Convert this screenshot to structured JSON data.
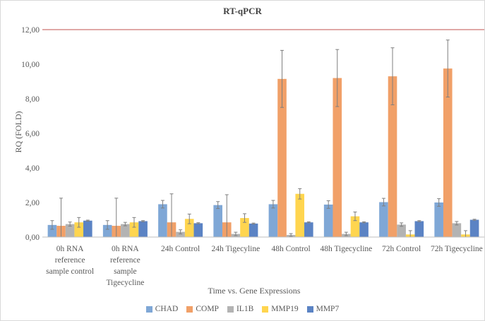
{
  "chart_data": {
    "type": "bar",
    "title": "RT-qPCR",
    "xlabel": "Time vs. Gene Expressions",
    "ylabel": "RQ (FOLD)",
    "ylim": [
      0,
      12
    ],
    "yticks": [
      "0,00",
      "2,00",
      "4,00",
      "6,00",
      "8,00",
      "10,00",
      "12,00"
    ],
    "grid": false,
    "legend_position": "bottom",
    "categories": [
      [
        "0h RNA",
        "reference",
        "sample control"
      ],
      [
        "0h RNA",
        "reference",
        "sample",
        "Tigecycline"
      ],
      [
        "24h Control"
      ],
      [
        "24h Tigecyline"
      ],
      [
        "48h Control"
      ],
      [
        "48h Tigecycline"
      ],
      [
        "72h Control"
      ],
      [
        "72h Tigecycline"
      ]
    ],
    "series": [
      {
        "name": "CHAD",
        "color": "#7fa7d6",
        "values": [
          0.7,
          0.7,
          1.9,
          1.85,
          1.9,
          1.88,
          2.02,
          2.0
        ],
        "errors": [
          0.25,
          0.25,
          0.22,
          0.2,
          0.22,
          0.22,
          0.22,
          0.22
        ]
      },
      {
        "name": "COMP",
        "color": "#f1a068",
        "values": [
          0.65,
          0.65,
          0.85,
          0.85,
          9.15,
          9.2,
          9.3,
          9.75
        ],
        "errors": [
          1.6,
          1.6,
          1.65,
          1.6,
          1.65,
          1.65,
          1.65,
          1.65
        ]
      },
      {
        "name": "IL1B",
        "color": "#b3b3b3",
        "values": [
          0.75,
          0.75,
          0.3,
          0.18,
          0.12,
          0.18,
          0.72,
          0.8
        ],
        "errors": [
          0.12,
          0.1,
          0.12,
          0.1,
          0.08,
          0.1,
          0.1,
          0.1
        ]
      },
      {
        "name": "MMP19",
        "color": "#ffd54f",
        "values": [
          0.85,
          0.85,
          1.05,
          1.1,
          2.5,
          1.2,
          0.15,
          0.15
        ],
        "errors": [
          0.28,
          0.28,
          0.28,
          0.25,
          0.3,
          0.25,
          0.22,
          0.22
        ]
      },
      {
        "name": "MMP7",
        "color": "#5b83c4",
        "values": [
          0.95,
          0.92,
          0.8,
          0.78,
          0.85,
          0.85,
          0.92,
          1.0
        ],
        "errors": [
          0.03,
          0.03,
          0.03,
          0.03,
          0.03,
          0.03,
          0.03,
          0.03
        ]
      }
    ]
  }
}
